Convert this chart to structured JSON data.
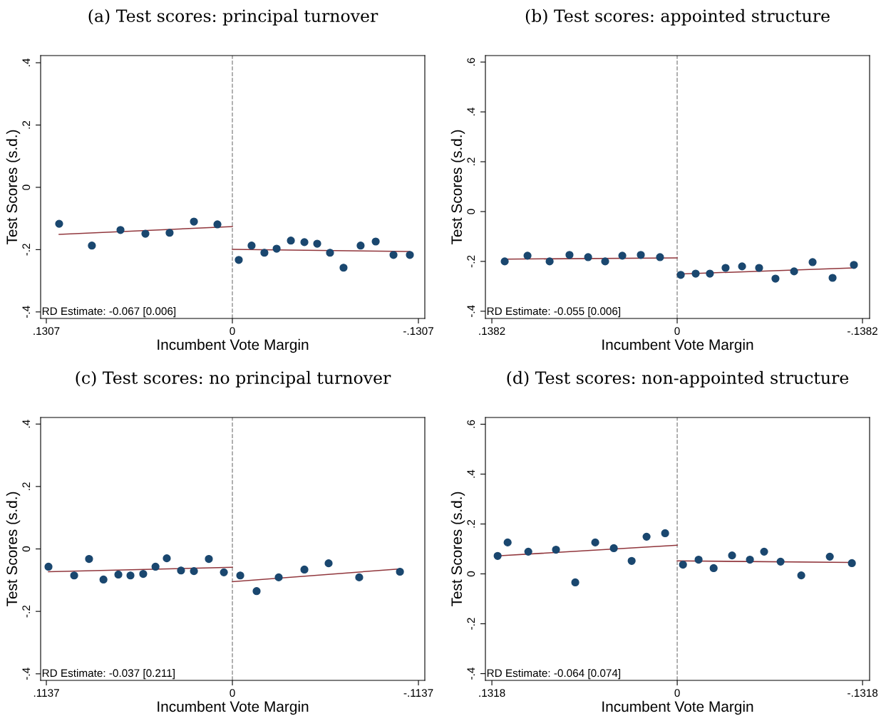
{
  "chart_data": [
    {
      "type": "scatter",
      "title": "(a) Test scores: principal turnover",
      "xlabel": "Incumbent Vote Margin",
      "ylabel": "Test Scores (s.d.)",
      "annotations": [
        "RD Estimate: -0.067 [0.006]"
      ],
      "xlim": [
        0.1347,
        -0.1352
      ],
      "xticks": [
        {
          "value": 0.1307,
          "label": ".1307"
        },
        0,
        {
          "value": -0.1307,
          "label": "-.1307"
        }
      ],
      "ylim": [
        -0.421,
        0.423
      ],
      "yticks": [
        {
          "value": -0.4,
          "label": "-.4"
        },
        {
          "value": -0.2,
          "label": "-.2"
        },
        0,
        {
          "value": 0.2,
          "label": ".2"
        },
        {
          "value": 0.4,
          "label": ".4"
        }
      ],
      "grid": false,
      "legend": false,
      "ref_lines": [
        {
          "axis": "x",
          "value": 0,
          "color": "#999999",
          "line_style": "dashed"
        }
      ],
      "series": [
        {
          "marker": "circle",
          "color": "#1a476f",
          "x": [
            0.1217,
            0.0987,
            0.0786,
            0.0611,
            0.0441,
            0.027,
            0.0105,
            -0.0045,
            -0.0135,
            -0.0225,
            -0.0311,
            -0.0411,
            -0.0506,
            -0.0596,
            -0.0686,
            -0.0781,
            -0.0901,
            -0.1007,
            -0.1132,
            -0.1247
          ],
          "values": [
            -0.117,
            -0.187,
            -0.137,
            -0.149,
            -0.146,
            -0.11,
            -0.119,
            -0.233,
            -0.187,
            -0.21,
            -0.197,
            -0.171,
            -0.176,
            -0.181,
            -0.21,
            -0.258,
            -0.187,
            -0.174,
            -0.217,
            -0.217
          ]
        },
        {
          "type": "line",
          "color": "#90353b",
          "x": [
            0.1217,
            0
          ],
          "values": [
            -0.151,
            -0.126
          ]
        },
        {
          "type": "line",
          "color": "#90353b",
          "x": [
            0,
            -0.1247
          ],
          "values": [
            -0.199,
            -0.206
          ]
        }
      ]
    },
    {
      "type": "scatter",
      "title": "(b) Test scores: appointed structure",
      "xlabel": "Incumbent Vote Margin",
      "ylabel": "Test Scores (s.d.)",
      "annotations": [
        "RD Estimate: -0.055 [0.006]"
      ],
      "xlim": [
        0.143,
        -0.1435
      ],
      "xticks": [
        {
          "value": 0.1382,
          "label": ".1382"
        },
        0,
        {
          "value": -0.1382,
          "label": "-.1382"
        }
      ],
      "ylim": [
        -0.429,
        0.626
      ],
      "yticks": [
        {
          "value": -0.4,
          "label": "-.4"
        },
        {
          "value": -0.2,
          "label": "-.2"
        },
        0,
        {
          "value": 0.2,
          "label": ".2"
        },
        {
          "value": 0.4,
          "label": ".4"
        },
        {
          "value": 0.6,
          "label": ".6"
        }
      ],
      "grid": false,
      "legend": false,
      "ref_lines": [
        {
          "axis": "x",
          "value": 0,
          "color": "#999999",
          "line_style": "dashed"
        }
      ],
      "series": [
        {
          "marker": "circle",
          "color": "#1a476f",
          "x": [
            0.1286,
            0.1116,
            0.0951,
            0.0803,
            0.0664,
            0.0537,
            0.0409,
            0.0271,
            0.0128,
            -0.0027,
            -0.0138,
            -0.0244,
            -0.0361,
            -0.0484,
            -0.0611,
            -0.0733,
            -0.0872,
            -0.101,
            -0.1159,
            -0.1318
          ],
          "values": [
            -0.2,
            -0.177,
            -0.2,
            -0.174,
            -0.183,
            -0.2,
            -0.177,
            -0.174,
            -0.183,
            -0.254,
            -0.249,
            -0.249,
            -0.226,
            -0.22,
            -0.226,
            -0.269,
            -0.24,
            -0.203,
            -0.266,
            -0.214
          ]
        },
        {
          "type": "line",
          "color": "#90353b",
          "x": [
            0.1286,
            0
          ],
          "values": [
            -0.191,
            -0.186
          ]
        },
        {
          "type": "line",
          "color": "#90353b",
          "x": [
            0,
            -0.1318
          ],
          "values": [
            -0.251,
            -0.226
          ]
        }
      ]
    },
    {
      "type": "scatter",
      "title": "(c) Test scores: no principal turnover",
      "xlabel": "Incumbent Vote Margin",
      "ylabel": "Test Scores (s.d.)",
      "annotations": [
        "RD Estimate: -0.037 [0.211]"
      ],
      "xlim": [
        0.1172,
        -0.1176
      ],
      "xticks": [
        {
          "value": 0.1137,
          "label": ".1137"
        },
        0,
        {
          "value": -0.1137,
          "label": "-.1137"
        }
      ],
      "ylim": [
        -0.421,
        0.421
      ],
      "yticks": [
        {
          "value": -0.4,
          "label": "-.4"
        },
        {
          "value": -0.2,
          "label": "-.2"
        },
        0,
        {
          "value": 0.2,
          "label": ".2"
        },
        {
          "value": 0.4,
          "label": ".4"
        }
      ],
      "grid": false,
      "legend": false,
      "ref_lines": [
        {
          "axis": "x",
          "value": 0,
          "color": "#999999",
          "line_style": "dashed"
        }
      ],
      "series": [
        {
          "marker": "circle",
          "color": "#1a476f",
          "x": [
            0.1124,
            0.0967,
            0.0876,
            0.0788,
            0.0697,
            0.0623,
            0.0545,
            0.047,
            0.0401,
            0.0314,
            0.0235,
            0.0144,
            0.0052,
            -0.0048,
            -0.0148,
            -0.0283,
            -0.044,
            -0.0588,
            -0.0775,
            -0.1024
          ],
          "values": [
            -0.057,
            -0.085,
            -0.032,
            -0.098,
            -0.082,
            -0.085,
            -0.08,
            -0.057,
            -0.03,
            -0.069,
            -0.071,
            -0.032,
            -0.075,
            -0.085,
            -0.135,
            -0.091,
            -0.066,
            -0.046,
            -0.091,
            -0.073
          ]
        },
        {
          "type": "line",
          "color": "#90353b",
          "x": [
            0.1124,
            0
          ],
          "values": [
            -0.073,
            -0.059
          ]
        },
        {
          "type": "line",
          "color": "#90353b",
          "x": [
            0,
            -0.1024
          ],
          "values": [
            -0.105,
            -0.064
          ]
        }
      ]
    },
    {
      "type": "scatter",
      "title": "(d) Test scores: non-appointed structure",
      "xlabel": "Incumbent Vote Margin",
      "ylabel": "Test Scores (s.d.)",
      "annotations": [
        "RD Estimate: -0.064 [0.074]"
      ],
      "xlim": [
        0.1364,
        -0.1368
      ],
      "xticks": [
        {
          "value": 0.1318,
          "label": ".1318"
        },
        0,
        {
          "value": -0.1318,
          "label": "-.1318"
        }
      ],
      "ylim": [
        -0.427,
        0.627
      ],
      "yticks": [
        {
          "value": -0.4,
          "label": "-.4"
        },
        {
          "value": -0.2,
          "label": "-.2"
        },
        0,
        {
          "value": 0.2,
          "label": ".2"
        },
        {
          "value": 0.4,
          "label": ".4"
        },
        {
          "value": 0.6,
          "label": ".6"
        }
      ],
      "grid": false,
      "legend": false,
      "ref_lines": [
        {
          "axis": "x",
          "value": 0,
          "color": "#999999",
          "line_style": "dashed"
        }
      ],
      "series": [
        {
          "marker": "circle",
          "color": "#1a476f",
          "x": [
            0.1277,
            0.1206,
            0.1059,
            0.0862,
            0.0725,
            0.0583,
            0.0451,
            0.0324,
            0.0218,
            0.0086,
            -0.0041,
            -0.0152,
            -0.0259,
            -0.039,
            -0.0517,
            -0.0618,
            -0.0735,
            -0.0882,
            -0.1085,
            -0.1242
          ],
          "values": [
            0.072,
            0.126,
            0.089,
            0.097,
            -0.034,
            0.126,
            0.103,
            0.052,
            0.149,
            0.163,
            0.037,
            0.057,
            0.023,
            0.074,
            0.057,
            0.089,
            0.049,
            -0.006,
            0.069,
            0.043
          ]
        },
        {
          "type": "line",
          "color": "#90353b",
          "x": [
            0.1277,
            0
          ],
          "values": [
            0.072,
            0.115
          ]
        },
        {
          "type": "line",
          "color": "#90353b",
          "x": [
            0,
            -0.1242
          ],
          "values": [
            0.052,
            0.046
          ]
        }
      ]
    }
  ]
}
